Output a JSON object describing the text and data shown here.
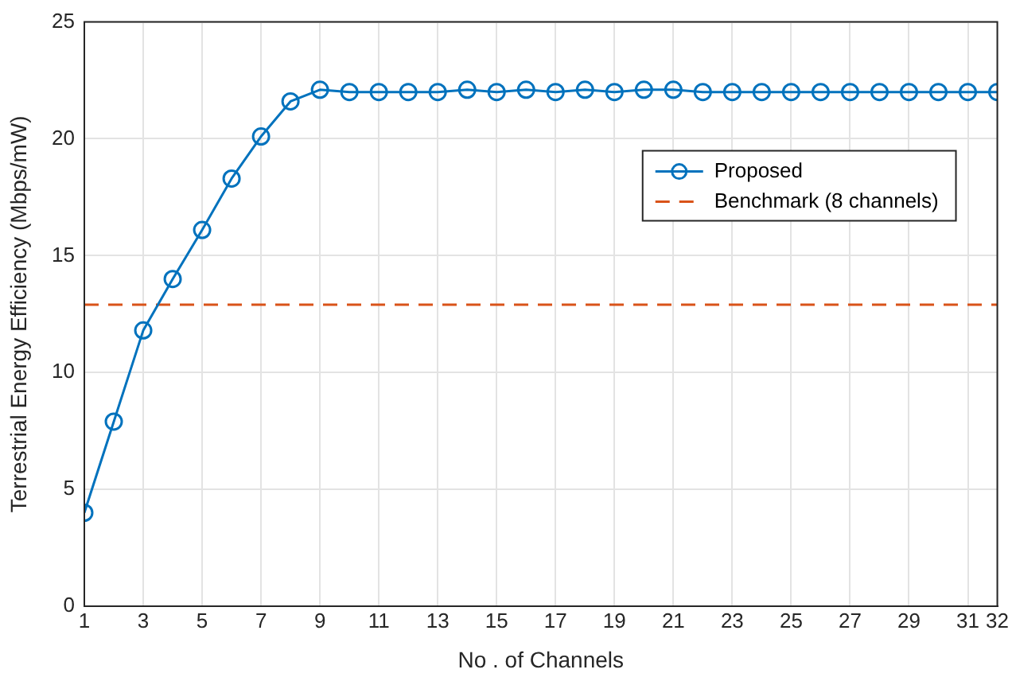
{
  "chart_data": {
    "type": "line",
    "xlabel": "No . of Channels",
    "ylabel": "Terrestrial Energy Efficiency (Mbps/mW)",
    "x": [
      1,
      2,
      3,
      4,
      5,
      6,
      7,
      8,
      9,
      10,
      11,
      12,
      13,
      14,
      15,
      16,
      17,
      18,
      19,
      20,
      21,
      22,
      23,
      24,
      25,
      26,
      27,
      28,
      29,
      30,
      31,
      32
    ],
    "series": [
      {
        "name": "Proposed",
        "color": "#0072bd",
        "marker": "circle",
        "line_style": "solid",
        "values": [
          4.0,
          7.9,
          11.8,
          14.0,
          16.1,
          18.3,
          20.1,
          21.6,
          22.1,
          22.0,
          22.0,
          22.0,
          22.0,
          22.1,
          22.0,
          22.1,
          22.0,
          22.1,
          22.0,
          22.1,
          22.1,
          22.0,
          22.0,
          22.0,
          22.0,
          22.0,
          22.0,
          22.0,
          22.0,
          22.0,
          22.0,
          22.0
        ]
      },
      {
        "name": "Benchmark (8 channels)",
        "color": "#d95319",
        "marker": "none",
        "line_style": "dashed",
        "x": [
          1,
          32
        ],
        "values": [
          12.9,
          12.9
        ]
      }
    ],
    "xlim": [
      1,
      32
    ],
    "xticks": [
      1,
      3,
      5,
      7,
      9,
      11,
      13,
      15,
      17,
      19,
      21,
      23,
      25,
      27,
      29,
      31,
      32
    ],
    "ylim": [
      0,
      25
    ],
    "yticks": [
      0,
      5,
      10,
      15,
      20,
      25
    ],
    "grid": true,
    "legend": "top right"
  }
}
